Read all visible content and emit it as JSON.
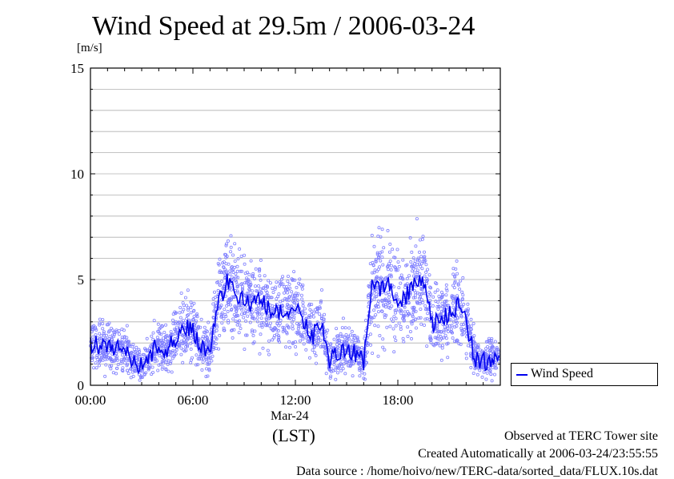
{
  "chart_data": {
    "type": "scatter",
    "title": "Wind Speed at 29.5m / 2006-03-24",
    "ylabel": "[m/s]",
    "ylim": [
      0,
      15
    ],
    "yticks": [
      "0",
      "5",
      "10",
      "15"
    ],
    "xlim": [
      0,
      24
    ],
    "xticks": [
      "00:00",
      "06:00",
      "12:00",
      "18:00"
    ],
    "xsublabel": "Mar-24",
    "xunit": "(LST)",
    "grid": true,
    "legend_position": "lower-right-outside",
    "series": [
      {
        "name": "Wind Speed",
        "color": "#0000ee",
        "scatter_color": "#8080ff",
        "x": [
          0.0,
          0.5,
          1.0,
          1.5,
          2.0,
          2.5,
          3.0,
          3.5,
          4.0,
          4.5,
          5.0,
          5.5,
          6.0,
          6.5,
          7.0,
          7.5,
          8.0,
          8.5,
          9.0,
          9.5,
          10.0,
          10.5,
          11.0,
          11.5,
          12.0,
          12.5,
          13.0,
          13.5,
          14.0,
          14.5,
          15.0,
          15.5,
          16.0,
          16.5,
          17.0,
          17.5,
          18.0,
          18.5,
          19.0,
          19.5,
          20.0,
          20.5,
          21.0,
          21.5,
          22.0,
          22.5,
          23.0,
          23.5
        ],
        "values": [
          2.0,
          1.9,
          1.8,
          1.7,
          1.8,
          1.2,
          0.9,
          1.4,
          2.0,
          1.6,
          2.3,
          2.8,
          2.6,
          1.8,
          1.7,
          3.9,
          4.9,
          4.3,
          4.1,
          3.8,
          4.0,
          3.5,
          3.3,
          3.6,
          3.6,
          3.1,
          2.3,
          3.0,
          1.1,
          1.6,
          1.7,
          1.5,
          1.1,
          4.7,
          4.6,
          4.9,
          4.0,
          4.2,
          4.7,
          5.0,
          2.9,
          3.0,
          3.4,
          3.8,
          3.1,
          1.3,
          1.1,
          1.3
        ]
      }
    ]
  },
  "footer": {
    "observed": "Observed at TERC Tower site",
    "created": "Created Automatically at 2006-03-24/23:55:55",
    "source": "Data source : /home/hoivo/new/TERC-data/sorted_data/FLUX.10s.dat"
  }
}
